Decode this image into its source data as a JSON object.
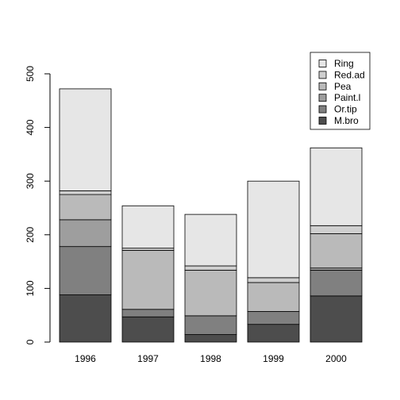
{
  "chart_data": {
    "type": "bar",
    "stacked": true,
    "title": "",
    "xlabel": "",
    "ylabel": "",
    "categories": [
      "1996",
      "1997",
      "1998",
      "1999",
      "2000"
    ],
    "ylim": [
      0,
      500
    ],
    "yticks": [
      0,
      100,
      200,
      300,
      400,
      500
    ],
    "grid": false,
    "legend_position": "top-right",
    "series": [
      {
        "name": "M.bro",
        "color": "#4d4d4d",
        "values": [
          88,
          47,
          14,
          33,
          86
        ]
      },
      {
        "name": "Or.tip",
        "color": "#808080",
        "values": [
          90,
          14,
          35,
          24,
          48
        ]
      },
      {
        "name": "Paint.l",
        "color": "#9e9e9e",
        "values": [
          50,
          0,
          0,
          0,
          4
        ]
      },
      {
        "name": "Pea",
        "color": "#bababa",
        "values": [
          47,
          110,
          85,
          54,
          64
        ]
      },
      {
        "name": "Red.ad",
        "color": "#cfcfcf",
        "values": [
          7,
          4,
          8,
          9,
          15
        ]
      },
      {
        "name": "Ring",
        "color": "#e6e6e6",
        "values": [
          190,
          79,
          96,
          180,
          145
        ]
      }
    ]
  }
}
